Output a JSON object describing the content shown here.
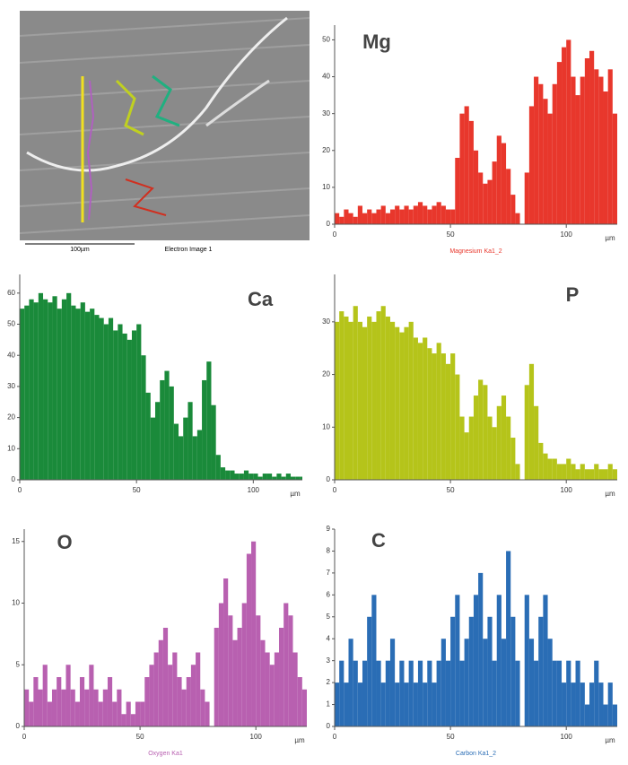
{
  "image": {
    "scale_label": "100µm",
    "caption": "Electron Image 1"
  },
  "chart_data": [
    {
      "type": "bar",
      "title": "Mg",
      "xlabel": "µm",
      "xlim": [
        0,
        122
      ],
      "xticks": [
        0,
        50,
        100
      ],
      "ylim": [
        0,
        54
      ],
      "yticks": [
        0,
        10,
        20,
        30,
        40,
        50
      ],
      "x": [
        0,
        2,
        4,
        6,
        8,
        10,
        12,
        14,
        16,
        18,
        20,
        22,
        24,
        26,
        28,
        30,
        32,
        34,
        36,
        38,
        40,
        42,
        44,
        46,
        48,
        50,
        52,
        54,
        56,
        58,
        60,
        62,
        64,
        66,
        68,
        70,
        72,
        74,
        76,
        78,
        80,
        82,
        84,
        86,
        88,
        90,
        92,
        94,
        96,
        98,
        100,
        102,
        104,
        106,
        108,
        110,
        112,
        114,
        116,
        118,
        120
      ],
      "series": [
        {
          "name": "Magnesium Ka1_2",
          "color": "#e8372c",
          "values": [
            3,
            2,
            4,
            3,
            2,
            5,
            3,
            4,
            3,
            4,
            5,
            3,
            4,
            5,
            4,
            5,
            4,
            5,
            6,
            5,
            4,
            5,
            6,
            5,
            4,
            4,
            18,
            30,
            32,
            28,
            20,
            14,
            11,
            12,
            17,
            24,
            22,
            15,
            8,
            3,
            0,
            14,
            32,
            40,
            38,
            34,
            30,
            38,
            44,
            48,
            50,
            40,
            35,
            40,
            45,
            47,
            42,
            40,
            36,
            42,
            30
          ]
        }
      ]
    },
    {
      "type": "bar",
      "title": "Ca",
      "xlabel": "µm",
      "xlim": [
        0,
        121
      ],
      "xticks": [
        0,
        50,
        100
      ],
      "ylim": [
        0,
        66
      ],
      "yticks": [
        0,
        10,
        20,
        30,
        40,
        50,
        60
      ],
      "x": [
        0,
        2,
        4,
        6,
        8,
        10,
        12,
        14,
        16,
        18,
        20,
        22,
        24,
        26,
        28,
        30,
        32,
        34,
        36,
        38,
        40,
        42,
        44,
        46,
        48,
        50,
        52,
        54,
        56,
        58,
        60,
        62,
        64,
        66,
        68,
        70,
        72,
        74,
        76,
        78,
        80,
        82,
        84,
        86,
        88,
        90,
        92,
        94,
        96,
        98,
        100,
        102,
        104,
        106,
        108,
        110,
        112,
        114,
        116,
        118,
        120
      ],
      "series": [
        {
          "color": "#1a8a3a",
          "values": [
            55,
            56,
            58,
            57,
            60,
            58,
            57,
            59,
            55,
            58,
            60,
            56,
            55,
            57,
            54,
            55,
            53,
            52,
            50,
            52,
            48,
            50,
            47,
            45,
            48,
            50,
            40,
            28,
            20,
            25,
            32,
            35,
            30,
            18,
            14,
            20,
            25,
            14,
            16,
            32,
            38,
            24,
            8,
            4,
            3,
            3,
            2,
            2,
            3,
            2,
            2,
            1,
            2,
            2,
            1,
            2,
            1,
            2,
            1,
            1,
            1
          ]
        }
      ]
    },
    {
      "type": "bar",
      "title": "P",
      "xlabel": "µm",
      "xlim": [
        0,
        122
      ],
      "xticks": [
        0,
        50,
        100
      ],
      "ylim": [
        0,
        39
      ],
      "yticks": [
        0,
        10,
        20,
        30
      ],
      "x": [
        0,
        2,
        4,
        6,
        8,
        10,
        12,
        14,
        16,
        18,
        20,
        22,
        24,
        26,
        28,
        30,
        32,
        34,
        36,
        38,
        40,
        42,
        44,
        46,
        48,
        50,
        52,
        54,
        56,
        58,
        60,
        62,
        64,
        66,
        68,
        70,
        72,
        74,
        76,
        78,
        80,
        82,
        84,
        86,
        88,
        90,
        92,
        94,
        96,
        98,
        100,
        102,
        104,
        106,
        108,
        110,
        112,
        114,
        116,
        118,
        120
      ],
      "series": [
        {
          "color": "#b5c41a",
          "values": [
            30,
            32,
            31,
            30,
            33,
            30,
            29,
            31,
            30,
            32,
            33,
            31,
            30,
            29,
            28,
            29,
            30,
            27,
            26,
            27,
            25,
            24,
            26,
            24,
            22,
            24,
            20,
            12,
            9,
            12,
            16,
            19,
            18,
            12,
            10,
            14,
            16,
            12,
            8,
            3,
            0,
            18,
            22,
            14,
            7,
            5,
            4,
            4,
            3,
            3,
            4,
            3,
            2,
            3,
            2,
            2,
            3,
            2,
            2,
            3,
            2
          ]
        }
      ]
    },
    {
      "type": "bar",
      "title": "O",
      "xlabel": "µm",
      "xlim": [
        0,
        122
      ],
      "xticks": [
        0,
        50,
        100
      ],
      "ylim": [
        0,
        16
      ],
      "yticks": [
        0,
        5,
        10,
        15
      ],
      "x": [
        0,
        2,
        4,
        6,
        8,
        10,
        12,
        14,
        16,
        18,
        20,
        22,
        24,
        26,
        28,
        30,
        32,
        34,
        36,
        38,
        40,
        42,
        44,
        46,
        48,
        50,
        52,
        54,
        56,
        58,
        60,
        62,
        64,
        66,
        68,
        70,
        72,
        74,
        76,
        78,
        80,
        82,
        84,
        86,
        88,
        90,
        92,
        94,
        96,
        98,
        100,
        102,
        104,
        106,
        108,
        110,
        112,
        114,
        116,
        118,
        120
      ],
      "series": [
        {
          "name": "Oxygen Ka1",
          "color": "#b860b0",
          "values": [
            3,
            2,
            4,
            3,
            5,
            2,
            3,
            4,
            3,
            5,
            3,
            2,
            4,
            3,
            5,
            3,
            2,
            3,
            4,
            2,
            3,
            1,
            2,
            1,
            2,
            2,
            4,
            5,
            6,
            7,
            8,
            5,
            6,
            4,
            3,
            4,
            5,
            6,
            3,
            2,
            0,
            8,
            10,
            12,
            9,
            7,
            8,
            10,
            14,
            15,
            9,
            7,
            6,
            5,
            6,
            8,
            10,
            9,
            6,
            4,
            3
          ]
        }
      ]
    },
    {
      "type": "bar",
      "title": "C",
      "xlabel": "µm",
      "xlim": [
        0,
        122
      ],
      "xticks": [
        0,
        50,
        100
      ],
      "ylim": [
        0,
        9
      ],
      "yticks": [
        0,
        1,
        2,
        3,
        4,
        5,
        6,
        7,
        8,
        9
      ],
      "x": [
        0,
        2,
        4,
        6,
        8,
        10,
        12,
        14,
        16,
        18,
        20,
        22,
        24,
        26,
        28,
        30,
        32,
        34,
        36,
        38,
        40,
        42,
        44,
        46,
        48,
        50,
        52,
        54,
        56,
        58,
        60,
        62,
        64,
        66,
        68,
        70,
        72,
        74,
        76,
        78,
        80,
        82,
        84,
        86,
        88,
        90,
        92,
        94,
        96,
        98,
        100,
        102,
        104,
        106,
        108,
        110,
        112,
        114,
        116,
        118,
        120
      ],
      "series": [
        {
          "name": "Carbon Ka1_2",
          "color": "#2a6db5",
          "values": [
            2,
            3,
            2,
            4,
            3,
            2,
            3,
            5,
            6,
            3,
            2,
            3,
            4,
            2,
            3,
            2,
            3,
            2,
            3,
            2,
            3,
            2,
            3,
            4,
            3,
            5,
            6,
            3,
            4,
            5,
            6,
            7,
            4,
            5,
            3,
            6,
            4,
            8,
            5,
            3,
            0,
            6,
            4,
            3,
            5,
            6,
            4,
            3,
            3,
            2,
            3,
            2,
            3,
            2,
            1,
            2,
            3,
            2,
            1,
            2,
            1
          ]
        }
      ]
    }
  ]
}
